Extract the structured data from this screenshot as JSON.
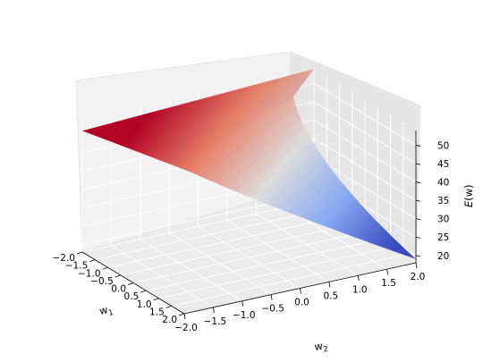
{
  "chart_data": {
    "type": "surface3d",
    "title": "",
    "xlabel": "w$_1$",
    "ylabel": "w$_2$",
    "zlabel": "E(w)",
    "xlabel_main": "w",
    "xlabel_sub": "1",
    "ylabel_main": "w",
    "ylabel_sub": "2",
    "zlabel_main": "E",
    "zlabel_arg": "(w)",
    "x_ticks": [
      "−2.0",
      "−1.5",
      "−1.0",
      "−0.5",
      "0.0",
      "0.5",
      "1.0",
      "1.5",
      "2.0"
    ],
    "y_ticks": [
      "−2.0",
      "−1.5",
      "−1.0",
      "−0.5",
      "0.0",
      "0.5",
      "1.0",
      "1.5",
      "2.0"
    ],
    "z_ticks": [
      "20",
      "25",
      "30",
      "35",
      "40",
      "45",
      "50"
    ],
    "xlim": [
      -2.0,
      2.0
    ],
    "ylim": [
      -2.0,
      2.0
    ],
    "zlim": [
      18,
      54
    ],
    "colormap": "coolwarm",
    "grid": true,
    "surface_corners": [
      {
        "w1": -2.0,
        "w2": -2.0,
        "E": 51
      },
      {
        "w1": 2.0,
        "w2": -2.0,
        "E": 51
      },
      {
        "w1": -2.0,
        "w2": 2.0,
        "E": 54
      },
      {
        "w1": 2.0,
        "w2": 2.0,
        "E": 19
      }
    ],
    "colors": {
      "low": "#3b4cc0",
      "mid": "#dddddd",
      "high": "#b40426"
    }
  }
}
